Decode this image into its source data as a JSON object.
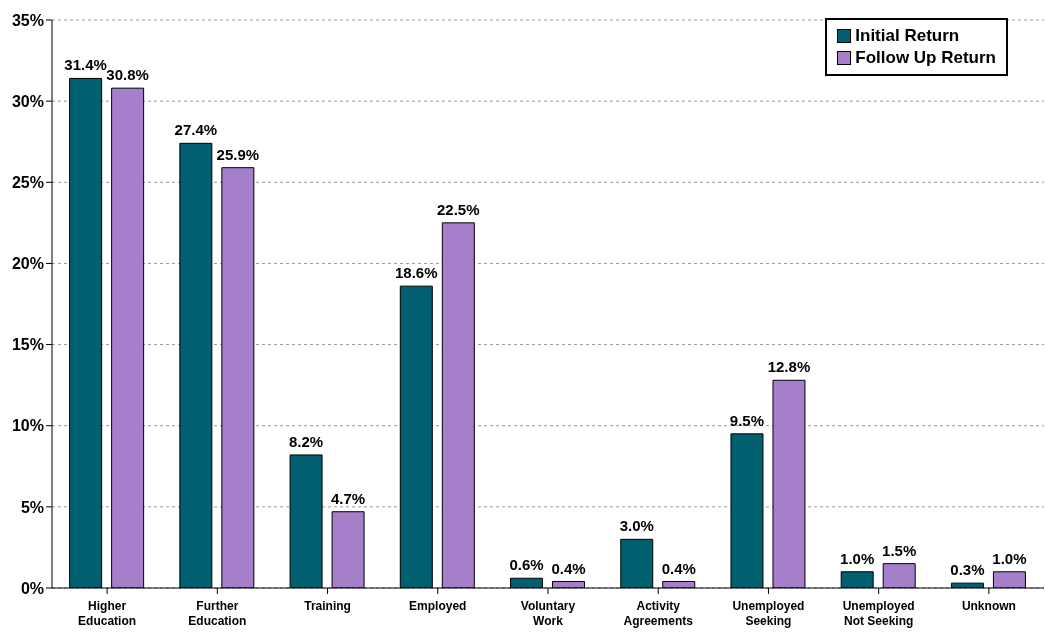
{
  "chart_data": {
    "type": "bar",
    "categories": [
      "Higher Education",
      "Further Education",
      "Training",
      "Employed",
      "Voluntary Work",
      "Activity Agreements",
      "Unemployed Seeking",
      "Unemployed Not Seeking",
      "Unknown"
    ],
    "series": [
      {
        "name": "Initial Return",
        "color": "#006070",
        "values": [
          31.4,
          27.4,
          8.2,
          18.6,
          0.6,
          3.0,
          9.5,
          1.0,
          0.3
        ],
        "value_labels": [
          "31.4%",
          "27.4%",
          "8.2%",
          "18.6%",
          "0.6%",
          "3.0%",
          "9.5%",
          "1.0%",
          "0.3%"
        ]
      },
      {
        "name": "Follow Up Return",
        "color": "#a57fc9",
        "values": [
          30.8,
          25.9,
          4.7,
          22.5,
          0.4,
          0.4,
          12.8,
          1.5,
          1.0
        ],
        "value_labels": [
          "30.8%",
          "25.9%",
          "4.7%",
          "22.5%",
          "0.4%",
          "0.4%",
          "12.8%",
          "1.5%",
          "1.0%"
        ]
      }
    ],
    "ylim": [
      0,
      35
    ],
    "yticks": [
      {
        "value": 0,
        "label": "0%"
      },
      {
        "value": 5,
        "label": "5%"
      },
      {
        "value": 10,
        "label": "10%"
      },
      {
        "value": 15,
        "label": "15%"
      },
      {
        "value": 20,
        "label": "20%"
      },
      {
        "value": 25,
        "label": "25%"
      },
      {
        "value": 30,
        "label": "30%"
      },
      {
        "value": 35,
        "label": "35%"
      }
    ],
    "grid": "y",
    "legend": "top right"
  }
}
